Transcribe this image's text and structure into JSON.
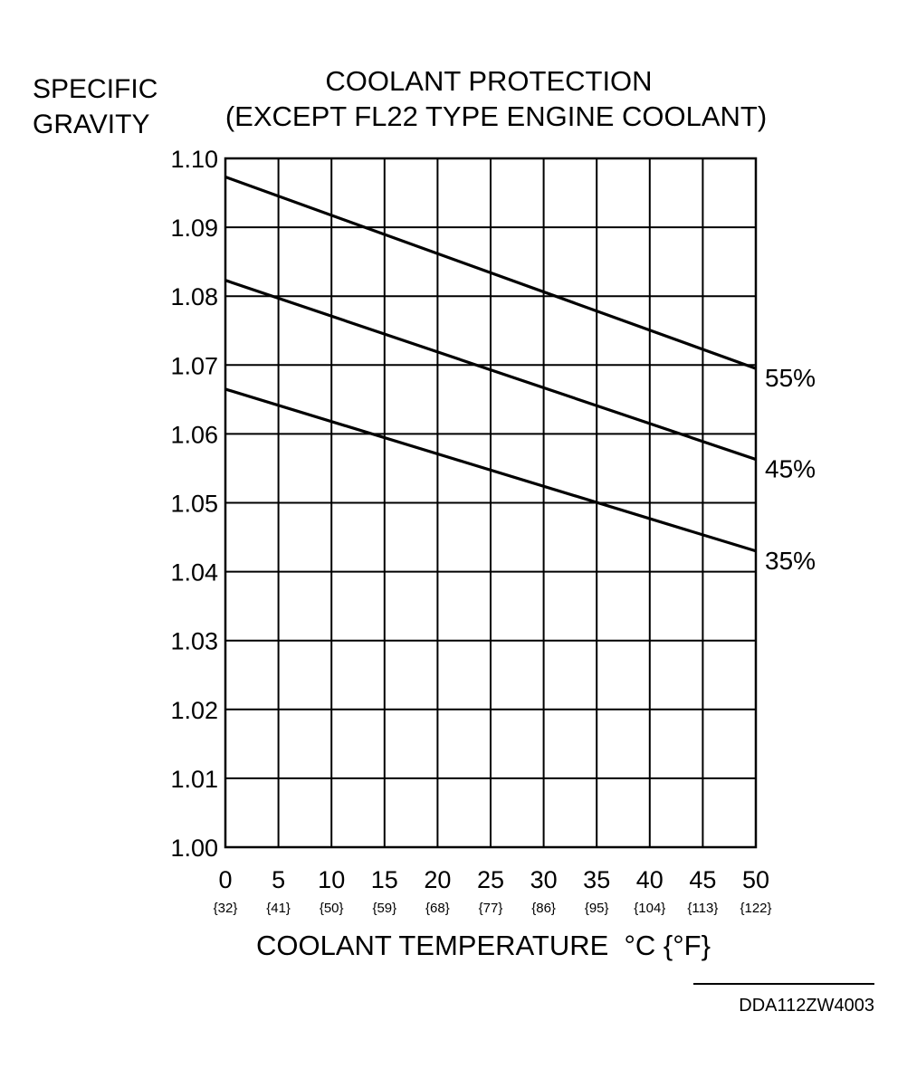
{
  "chart_data": {
    "type": "line",
    "title": [
      "COOLANT PROTECTION",
      "(EXCEPT FL22 TYPE ENGINE COOLANT)"
    ],
    "ylabel": [
      "SPECIFIC",
      "GRAVITY"
    ],
    "xlabel": "COOLANT TEMPERATURE  °C {°F}",
    "xlim": [
      0,
      50
    ],
    "ylim": [
      1.0,
      1.1
    ],
    "grid": true,
    "x_ticks": [
      "0",
      "5",
      "10",
      "15",
      "20",
      "25",
      "30",
      "35",
      "40",
      "45",
      "50"
    ],
    "x_ticks_f": [
      "{32}",
      "{41}",
      "{50}",
      "{59}",
      "{68}",
      "{77}",
      "{86}",
      "{95}",
      "{104}",
      "{113}",
      "{122}"
    ],
    "y_ticks": [
      "1.00",
      "1.01",
      "1.02",
      "1.03",
      "1.04",
      "1.05",
      "1.06",
      "1.07",
      "1.08",
      "1.09",
      "1.10"
    ],
    "series": [
      {
        "name": "55%",
        "x": [
          0,
          50
        ],
        "y": [
          1.0973,
          1.0695
        ]
      },
      {
        "name": "45%",
        "x": [
          0,
          50
        ],
        "y": [
          1.0823,
          1.0563
        ]
      },
      {
        "name": "35%",
        "x": [
          0,
          50
        ],
        "y": [
          1.0665,
          1.043
        ]
      }
    ]
  },
  "reference_code": "DDA112ZW4003"
}
